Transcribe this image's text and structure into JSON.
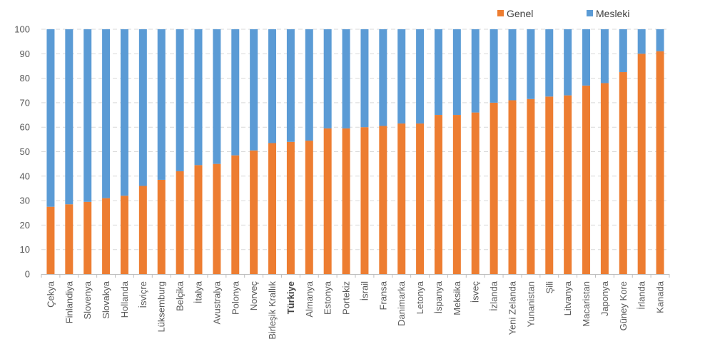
{
  "chart_data": {
    "type": "bar",
    "stacked": true,
    "categories": [
      "Çekya",
      "Finlandiya",
      "Slovenya",
      "Slovakya",
      "Hollanda",
      "İsviçre",
      "Lüksemburg",
      "Belçika",
      "İtalya",
      "Avustralya",
      "Polonya",
      "Norveç",
      "Birleşik Krallık",
      "Türkiye",
      "Almanya",
      "Estonya",
      "Portekiz",
      "İsrail",
      "Fransa",
      "Danimarka",
      "Letonya",
      "İspanya",
      "Meksika",
      "İsveç",
      "İzlanda",
      "Yeni Zelanda",
      "Yunanistan",
      "Şili",
      "Litvanya",
      "Macaristan",
      "Japonya",
      "Güney Kore",
      "İrlanda",
      "Kanada"
    ],
    "highlight_category": "Türkiye",
    "series": [
      {
        "name": "Genel",
        "color": "#ED7D31",
        "values": [
          27.5,
          28.5,
          29.5,
          31,
          32,
          36,
          38.5,
          42,
          44.5,
          45,
          48.5,
          50.5,
          53.5,
          54,
          54.5,
          59.5,
          59.5,
          60,
          60.5,
          61.5,
          61.5,
          65,
          65,
          66,
          70,
          71,
          71.5,
          72.5,
          73,
          77,
          78,
          82.5,
          90,
          91
        ]
      },
      {
        "name": "Mesleki",
        "color": "#5B9BD5",
        "values": [
          72.5,
          71.5,
          70.5,
          69,
          68,
          64,
          61.5,
          58,
          55.5,
          55,
          51.5,
          49.5,
          46.5,
          46,
          45.5,
          40.5,
          40.5,
          40,
          39.5,
          38.5,
          38.5,
          35,
          35,
          34,
          30,
          29,
          28.5,
          27.5,
          27,
          23,
          22,
          17.5,
          10,
          9
        ]
      }
    ],
    "ylim": [
      0,
      100
    ],
    "yticks": [
      0,
      10,
      20,
      30,
      40,
      50,
      60,
      70,
      80,
      90,
      100
    ],
    "grid": true,
    "legend": "top-right",
    "title": "",
    "xlabel": "",
    "ylabel": ""
  }
}
